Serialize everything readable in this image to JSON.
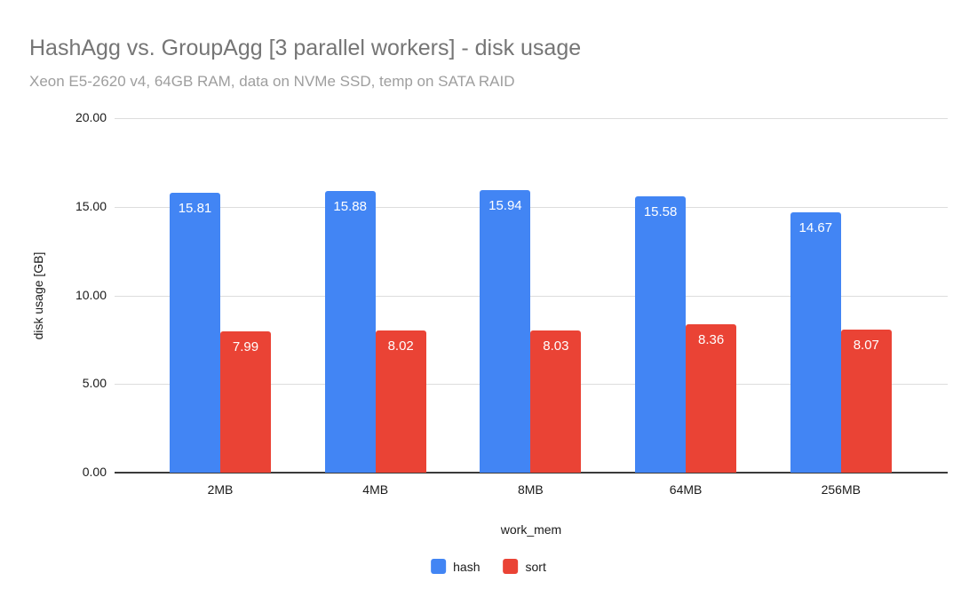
{
  "chart_data": {
    "type": "bar",
    "title": "HashAgg vs. GroupAgg [3 parallel workers] - disk usage",
    "subtitle": "Xeon E5-2620 v4, 64GB RAM, data on NVMe SSD, temp on SATA RAID",
    "xlabel": "work_mem",
    "ylabel": "disk usage [GB]",
    "categories": [
      "2MB",
      "4MB",
      "8MB",
      "64MB",
      "256MB"
    ],
    "series": [
      {
        "name": "hash",
        "color": "#4285F4",
        "values": [
          15.81,
          15.88,
          15.94,
          15.58,
          14.67
        ]
      },
      {
        "name": "sort",
        "color": "#EA4335",
        "values": [
          7.99,
          8.02,
          8.03,
          8.36,
          8.07
        ]
      }
    ],
    "ylim": [
      0,
      20
    ],
    "yticks": {
      "values": [
        0,
        5,
        10,
        15,
        20
      ],
      "labels": [
        "0.00",
        "5.00",
        "10.00",
        "15.00",
        "20.00"
      ]
    },
    "grid": true,
    "legend_position": "bottom",
    "value_labels": "inside-top, 2 decimals, white",
    "colors": {
      "title_gray": "#757575",
      "subtitle_gray": "#9e9e9e",
      "gridline": "#dddddd",
      "axis_line": "#3b3b3b"
    }
  }
}
